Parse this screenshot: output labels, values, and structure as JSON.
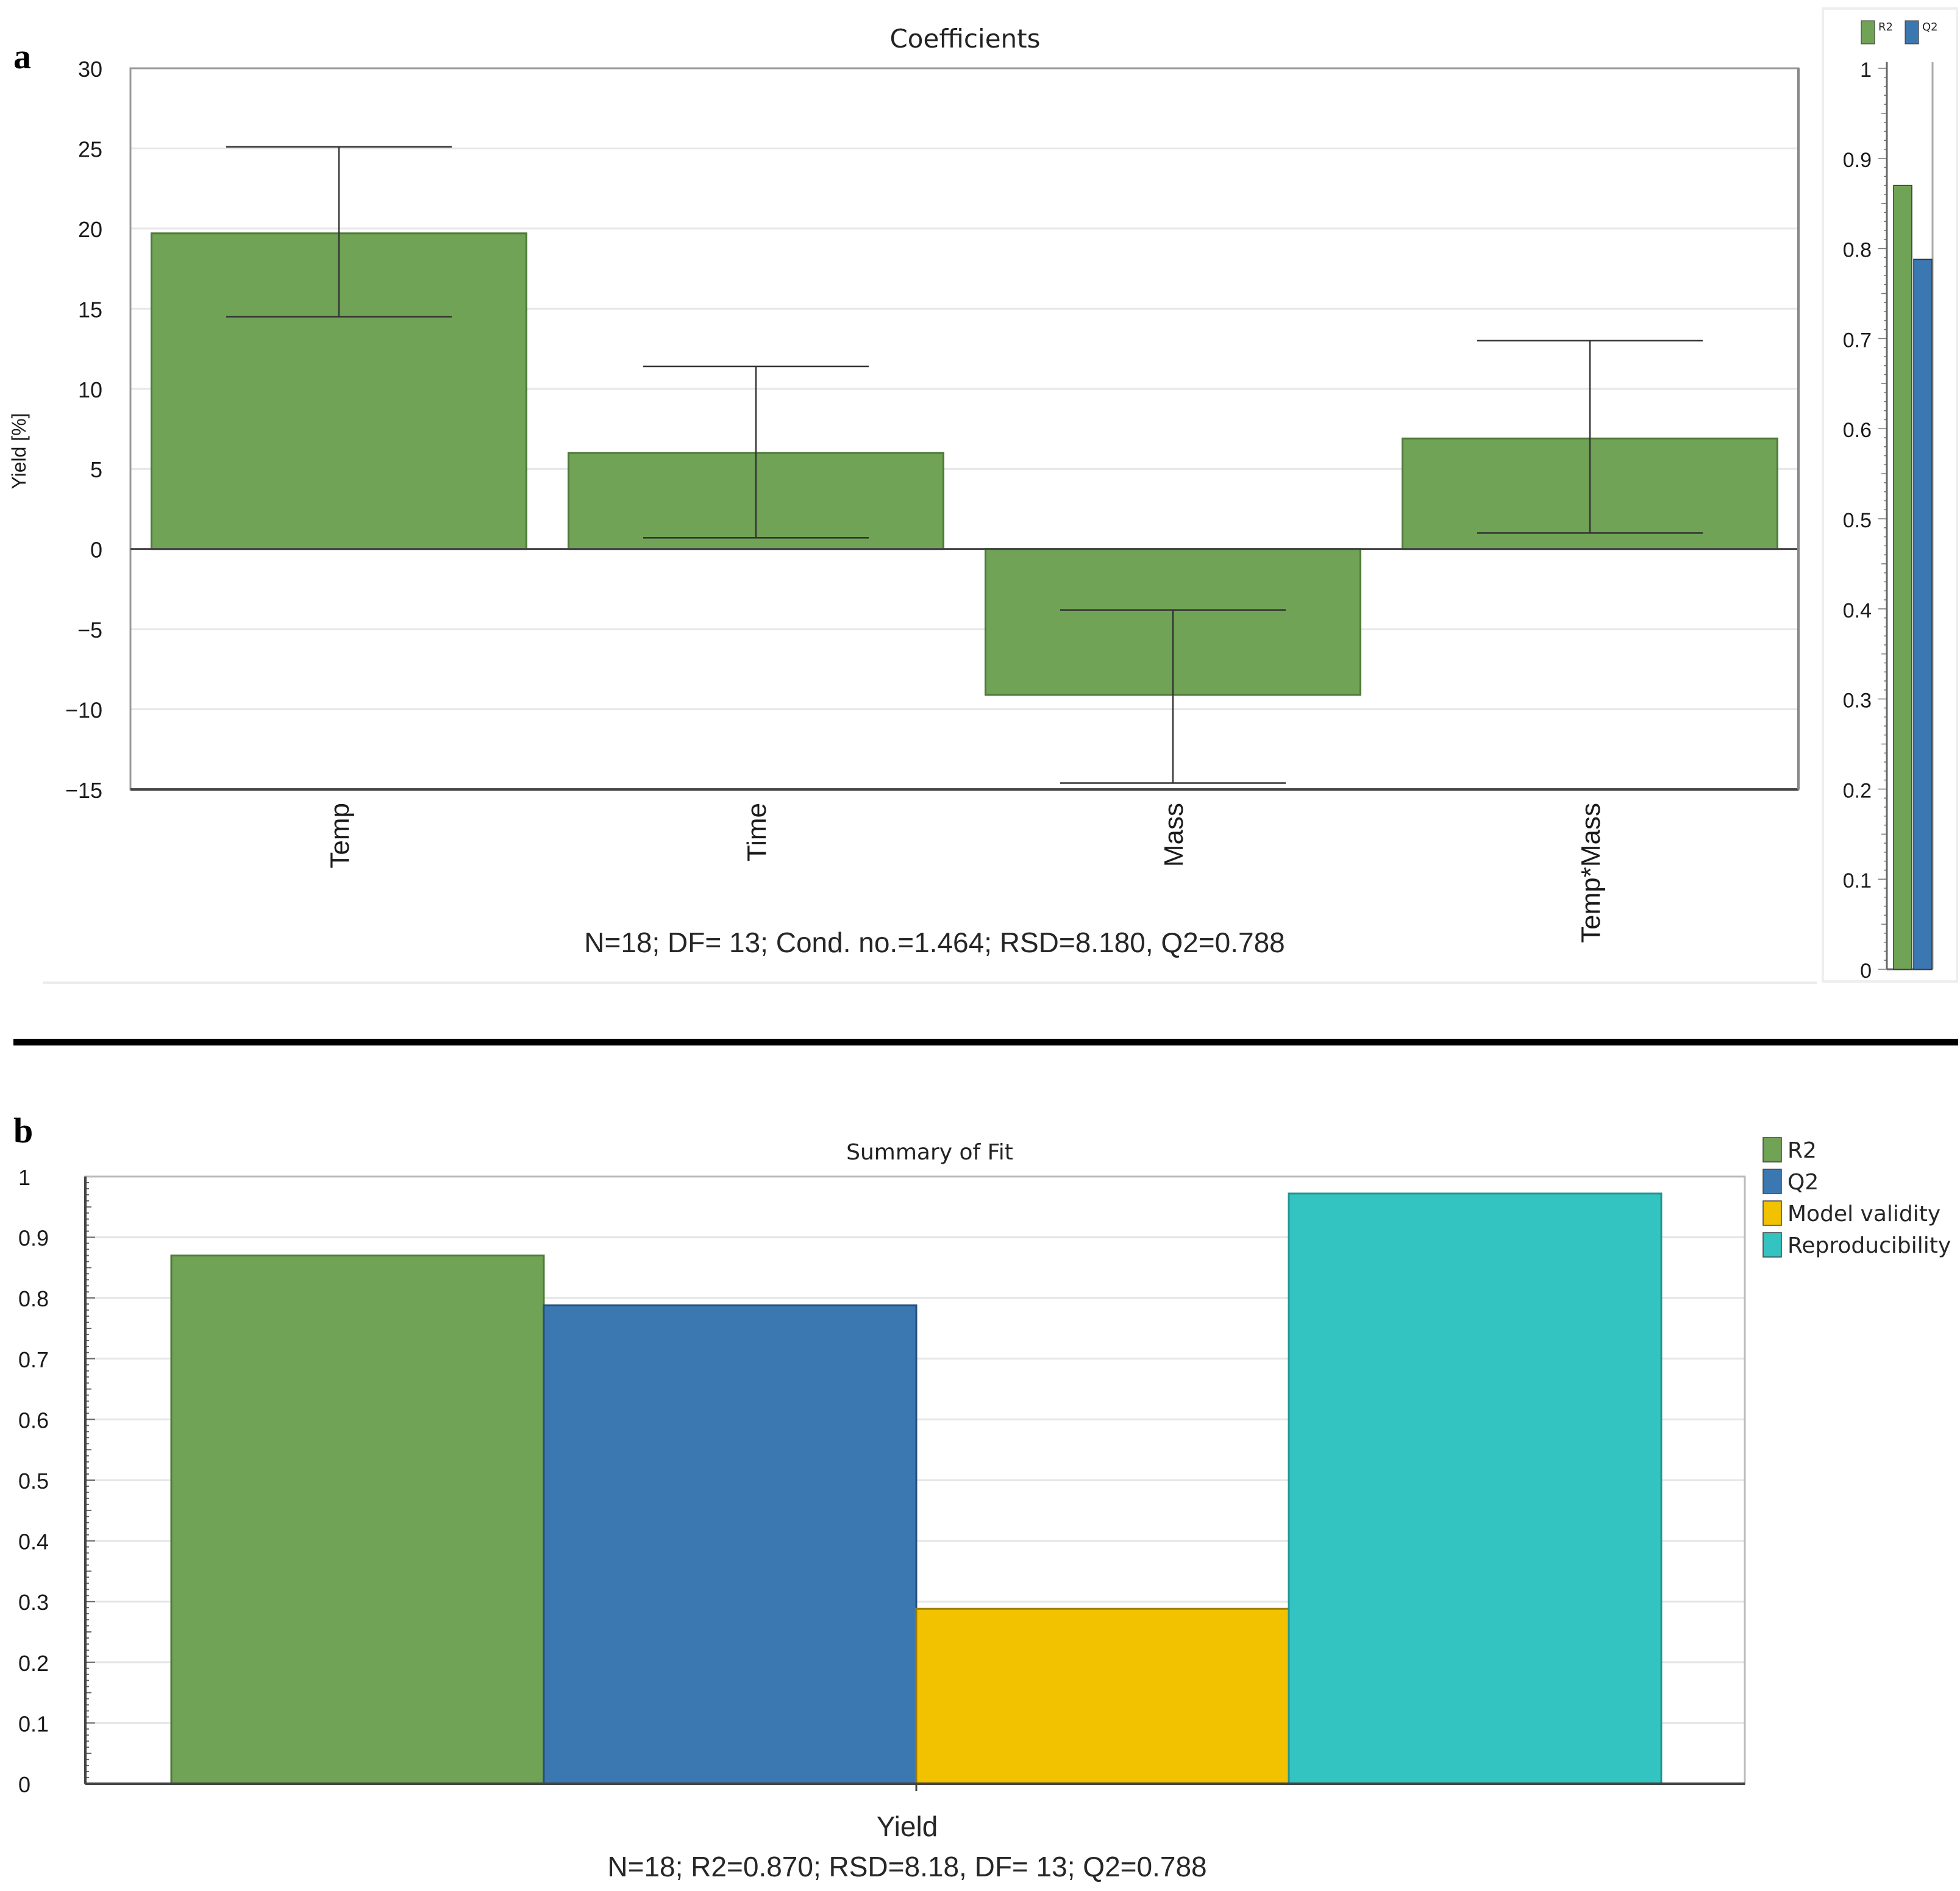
{
  "panel_a": {
    "letter": "a"
  },
  "panel_b": {
    "letter": "b"
  },
  "colors": {
    "r2": "#70a355",
    "q2": "#3b78b2",
    "model_validity": "#f2c200",
    "reproducibility": "#33c3c1",
    "axis": "#555555",
    "grid": "#e6e6e6",
    "errorbar": "#333333"
  },
  "chart_data": [
    {
      "id": "coefficients",
      "type": "bar",
      "title": "Coefficients",
      "ylabel": "Yield [%]",
      "xlabel": "",
      "ylim": [
        -15,
        30
      ],
      "yticks": [
        30,
        25,
        20,
        15,
        10,
        5,
        0,
        -5,
        -10,
        -15
      ],
      "ytick_labels": [
        "30",
        "25",
        "20",
        "15",
        "10",
        "5",
        "0",
        "−5",
        "−10",
        "−15"
      ],
      "categories": [
        "Temp",
        "Time",
        "Mass",
        "Temp*Mass"
      ],
      "values": [
        19.7,
        6.0,
        -9.1,
        6.9
      ],
      "error_low": [
        14.5,
        0.7,
        -14.6,
        1.0
      ],
      "error_high": [
        25.1,
        11.4,
        -3.8,
        13.0
      ],
      "grid": true,
      "footer": "N=18; DF= 13; Cond. no.=1.464; RSD=8.180, Q2=0.788"
    },
    {
      "id": "coefficients-fit-inset",
      "type": "bar",
      "ylim": [
        0,
        1
      ],
      "yticks": [
        1,
        0.9,
        0.8,
        0.7,
        0.6,
        0.5,
        0.4,
        0.3,
        0.2,
        0.1,
        0
      ],
      "ytick_labels": [
        "1",
        "0.9",
        "0.8",
        "0.7",
        "0.6",
        "0.5",
        "0.4",
        "0.3",
        "0.2",
        "0.1",
        "0"
      ],
      "series": [
        {
          "name": "R2",
          "values": [
            0.87
          ]
        },
        {
          "name": "Q2",
          "values": [
            0.788
          ]
        }
      ],
      "legend": [
        "R2",
        "Q2"
      ],
      "legend_position": "top"
    },
    {
      "id": "summary-of-fit",
      "type": "bar",
      "title": "Summary of Fit",
      "xlabel": "Yield",
      "ylim": [
        0,
        1
      ],
      "yticks": [
        1,
        0.9,
        0.8,
        0.7,
        0.6,
        0.5,
        0.4,
        0.3,
        0.2,
        0.1,
        0
      ],
      "ytick_labels": [
        "1",
        "0.9",
        "0.8",
        "0.7",
        "0.6",
        "0.5",
        "0.4",
        "0.3",
        "0.2",
        "0.1",
        "0"
      ],
      "categories": [
        "Yield"
      ],
      "series": [
        {
          "name": "R2",
          "values": [
            0.87
          ]
        },
        {
          "name": "Q2",
          "values": [
            0.788
          ]
        },
        {
          "name": "Model validity",
          "values": [
            0.288
          ]
        },
        {
          "name": "Reproducibility",
          "values": [
            0.972
          ]
        }
      ],
      "legend": [
        "R2",
        "Q2",
        "Model validity",
        "Reproducibility"
      ],
      "legend_position": "top-right",
      "grid": true,
      "footer": "N=18; R2=0.870; RSD=8.18, DF= 13; Q2=0.788"
    }
  ]
}
